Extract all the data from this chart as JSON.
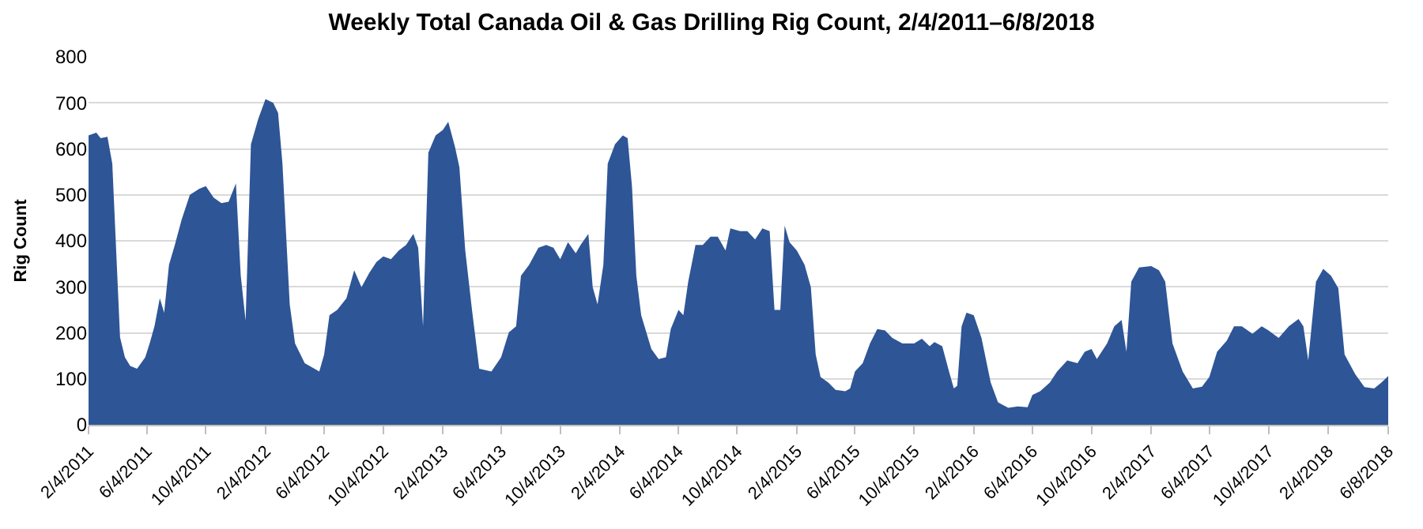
{
  "chart_data": {
    "type": "area",
    "title": "Weekly Total Canada Oil & Gas Drilling Rig Count, 2/4/2011–6/8/2018",
    "ylabel": "Rig Count",
    "x": [
      "2011-02-04",
      "2011-02-20",
      "2011-03-01",
      "2011-03-15",
      "2011-03-25",
      "2011-04-10",
      "2011-04-20",
      "2011-05-01",
      "2011-05-15",
      "2011-06-01",
      "2011-06-10",
      "2011-06-20",
      "2011-07-01",
      "2011-07-10",
      "2011-07-20",
      "2011-08-01",
      "2011-08-15",
      "2011-09-01",
      "2011-09-20",
      "2011-10-04",
      "2011-10-20",
      "2011-11-05",
      "2011-11-20",
      "2011-12-05",
      "2011-12-15",
      "2011-12-25",
      "2012-01-05",
      "2012-01-20",
      "2012-02-04",
      "2012-02-20",
      "2012-03-01",
      "2012-03-10",
      "2012-03-25",
      "2012-04-05",
      "2012-04-25",
      "2012-05-15",
      "2012-05-25",
      "2012-06-04",
      "2012-06-15",
      "2012-07-01",
      "2012-07-20",
      "2012-08-05",
      "2012-08-20",
      "2012-09-05",
      "2012-09-20",
      "2012-10-04",
      "2012-10-20",
      "2012-11-05",
      "2012-11-20",
      "2012-12-05",
      "2012-12-15",
      "2012-12-25",
      "2013-01-05",
      "2013-01-20",
      "2013-02-04",
      "2013-02-15",
      "2013-03-01",
      "2013-03-10",
      "2013-03-22",
      "2013-04-05",
      "2013-04-20",
      "2013-05-15",
      "2013-06-04",
      "2013-06-20",
      "2013-07-05",
      "2013-07-15",
      "2013-08-01",
      "2013-08-20",
      "2013-09-05",
      "2013-09-20",
      "2013-10-04",
      "2013-10-20",
      "2013-11-05",
      "2013-11-15",
      "2013-12-01",
      "2013-12-10",
      "2013-12-20",
      "2014-01-01",
      "2014-01-10",
      "2014-01-25",
      "2014-02-10",
      "2014-02-20",
      "2014-03-01",
      "2014-03-10",
      "2014-03-20",
      "2014-04-10",
      "2014-04-25",
      "2014-05-10",
      "2014-05-20",
      "2014-06-05",
      "2014-06-15",
      "2014-06-25",
      "2014-07-10",
      "2014-07-25",
      "2014-08-10",
      "2014-08-25",
      "2014-09-10",
      "2014-09-20",
      "2014-10-10",
      "2014-10-25",
      "2014-11-10",
      "2014-11-25",
      "2014-12-10",
      "2014-12-20",
      "2015-01-01",
      "2015-01-10",
      "2015-01-20",
      "2015-02-04",
      "2015-02-20",
      "2015-03-05",
      "2015-03-15",
      "2015-03-25",
      "2015-04-10",
      "2015-04-25",
      "2015-05-15",
      "2015-05-25",
      "2015-06-04",
      "2015-06-20",
      "2015-07-05",
      "2015-07-20",
      "2015-08-05",
      "2015-08-20",
      "2015-09-10",
      "2015-10-04",
      "2015-10-20",
      "2015-11-05",
      "2015-11-15",
      "2015-12-01",
      "2015-12-15",
      "2015-12-25",
      "2016-01-01",
      "2016-01-10",
      "2016-01-20",
      "2016-02-04",
      "2016-02-20",
      "2016-03-10",
      "2016-03-25",
      "2016-04-15",
      "2016-05-05",
      "2016-05-25",
      "2016-06-04",
      "2016-06-20",
      "2016-07-10",
      "2016-07-25",
      "2016-08-15",
      "2016-09-05",
      "2016-09-20",
      "2016-10-04",
      "2016-10-15",
      "2016-11-05",
      "2016-11-20",
      "2016-12-05",
      "2016-12-15",
      "2016-12-25",
      "2017-01-10",
      "2017-02-04",
      "2017-02-20",
      "2017-03-05",
      "2017-03-20",
      "2017-04-10",
      "2017-05-01",
      "2017-05-20",
      "2017-06-04",
      "2017-06-20",
      "2017-07-10",
      "2017-07-25",
      "2017-08-10",
      "2017-09-01",
      "2017-09-20",
      "2017-10-04",
      "2017-10-25",
      "2017-11-15",
      "2017-12-05",
      "2017-12-15",
      "2017-12-25",
      "2018-01-10",
      "2018-01-25",
      "2018-02-10",
      "2018-02-25",
      "2018-03-10",
      "2018-04-01",
      "2018-04-20",
      "2018-05-10",
      "2018-05-25",
      "2018-06-08"
    ],
    "series": [
      {
        "color": "#2e5596",
        "values": [
          629,
          635,
          623,
          626,
          568,
          190,
          147,
          128,
          122,
          147,
          177,
          214,
          275,
          244,
          348,
          391,
          446,
          500,
          513,
          519,
          494,
          482,
          485,
          525,
          324,
          226,
          610,
          665,
          708,
          700,
          678,
          568,
          262,
          177,
          134,
          122,
          116,
          153,
          238,
          250,
          275,
          336,
          299,
          330,
          354,
          366,
          360,
          379,
          391,
          415,
          385,
          214,
          592,
          629,
          641,
          659,
          604,
          560,
          380,
          250,
          122,
          116,
          147,
          201,
          214,
          324,
          348,
          385,
          391,
          385,
          360,
          397,
          373,
          391,
          415,
          299,
          262,
          348,
          568,
          610,
          629,
          623,
          519,
          324,
          238,
          165,
          143,
          147,
          208,
          250,
          238,
          311,
          391,
          391,
          409,
          409,
          379,
          427,
          421,
          421,
          403,
          427,
          421,
          250,
          250,
          433,
          397,
          379,
          348,
          299,
          153,
          104,
          92,
          76,
          73,
          79,
          116,
          134,
          177,
          208,
          205,
          189,
          177,
          177,
          187,
          171,
          180,
          171,
          116,
          79,
          85,
          214,
          244,
          238,
          189,
          92,
          49,
          37,
          40,
          38,
          65,
          73,
          92,
          116,
          140,
          134,
          159,
          165,
          143,
          177,
          214,
          228,
          159,
          311,
          342,
          345,
          336,
          311,
          177,
          116,
          79,
          83,
          104,
          159,
          183,
          214,
          214,
          198,
          214,
          205,
          189,
          214,
          230,
          214,
          140,
          311,
          339,
          324,
          297,
          153,
          110,
          82,
          79,
          92,
          106
        ]
      }
    ],
    "xlim": [
      "2011-02-04",
      "2018-06-08"
    ],
    "xticks": [
      {
        "value": "2011-02-04",
        "label": "2/4/2011"
      },
      {
        "value": "2011-06-04",
        "label": "6/4/2011"
      },
      {
        "value": "2011-10-04",
        "label": "10/4/2011"
      },
      {
        "value": "2012-02-04",
        "label": "2/4/2012"
      },
      {
        "value": "2012-06-04",
        "label": "6/4/2012"
      },
      {
        "value": "2012-10-04",
        "label": "10/4/2012"
      },
      {
        "value": "2013-02-04",
        "label": "2/4/2013"
      },
      {
        "value": "2013-06-04",
        "label": "6/4/2013"
      },
      {
        "value": "2013-10-04",
        "label": "10/4/2013"
      },
      {
        "value": "2014-02-04",
        "label": "2/4/2014"
      },
      {
        "value": "2014-06-04",
        "label": "6/4/2014"
      },
      {
        "value": "2014-10-04",
        "label": "10/4/2014"
      },
      {
        "value": "2015-02-04",
        "label": "2/4/2015"
      },
      {
        "value": "2015-06-04",
        "label": "6/4/2015"
      },
      {
        "value": "2015-10-04",
        "label": "10/4/2015"
      },
      {
        "value": "2016-02-04",
        "label": "2/4/2016"
      },
      {
        "value": "2016-06-04",
        "label": "6/4/2016"
      },
      {
        "value": "2016-10-04",
        "label": "10/4/2016"
      },
      {
        "value": "2017-02-04",
        "label": "2/4/2017"
      },
      {
        "value": "2017-06-04",
        "label": "6/4/2017"
      },
      {
        "value": "2017-10-04",
        "label": "10/4/2017"
      },
      {
        "value": "2018-02-04",
        "label": "2/4/2018"
      },
      {
        "value": "2018-06-08",
        "label": "6/8/2018"
      }
    ],
    "ylim": [
      0,
      800
    ],
    "yticks": [
      0,
      100,
      200,
      300,
      400,
      500,
      600,
      700,
      800
    ],
    "grid": "y"
  }
}
